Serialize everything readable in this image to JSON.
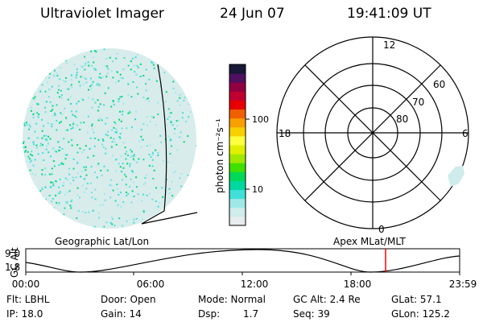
{
  "header": {
    "title": "Ultraviolet Imager",
    "date": "24 Jun 07",
    "time": "19:41:09 UT"
  },
  "colorbar": {
    "unit_label": "photon cm⁻²s⁻¹",
    "ticks": [
      "100",
      "10"
    ],
    "colors": [
      "#e8ecec",
      "#d0ecec",
      "#a0e8e8",
      "#40e0d8",
      "#00d8a0",
      "#00d858",
      "#40e000",
      "#a0e800",
      "#e0f000",
      "#ffff40",
      "#f8d000",
      "#f8a000",
      "#f06000",
      "#e80000",
      "#c00030",
      "#900040",
      "#501060",
      "#181838"
    ]
  },
  "polar": {
    "labels": [
      "12",
      "18",
      "6",
      "0",
      "60",
      "70",
      "80"
    ]
  },
  "timeline": {
    "left_title": "Geographic Lat/Lon",
    "right_title": "Apex MLat/MLT",
    "axis_title": "GC Alt",
    "y_ticks": [
      "9.0",
      "1.8"
    ],
    "x_ticks": [
      "00:00",
      "06:00",
      "12:00",
      "18:00",
      "23:59"
    ],
    "marker_color": "#ff0000"
  },
  "info": {
    "flt": "Flt: LBHL",
    "ip": "IP: 18.0",
    "door": "Door: Open",
    "gain": "Gain: 14",
    "mode": "Mode: Normal",
    "dsp_label": "Dsp:",
    "dsp_value": "1.7",
    "gcalt": "GC Alt: 2.4 Re",
    "seq": "Seq: 39",
    "glat": "GLat: 57.1",
    "glon": "GLon: 125.2"
  }
}
